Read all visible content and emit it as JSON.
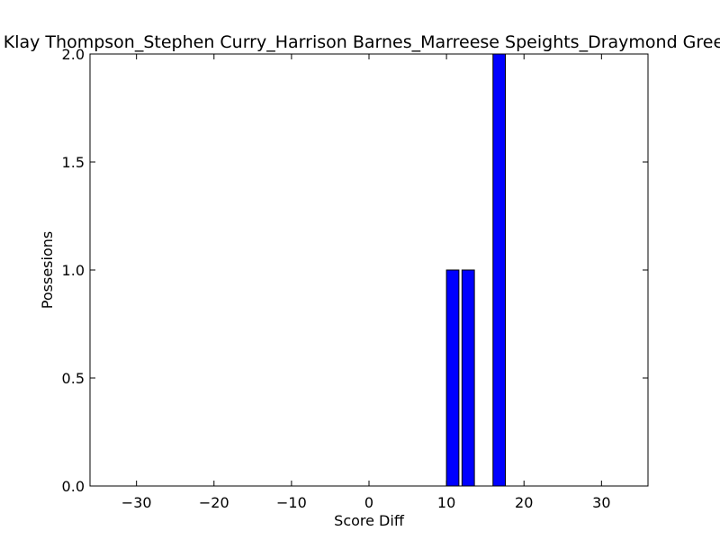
{
  "chart_data": {
    "type": "bar",
    "title": "Klay Thompson_Stephen Curry_Harrison Barnes_Marreese Speights_Draymond Green",
    "xlabel": "Score Diff",
    "ylabel": "Possesions",
    "xlim": [
      -36,
      36
    ],
    "ylim": [
      0,
      2
    ],
    "xticks": [
      -30,
      -20,
      -10,
      0,
      10,
      20,
      30
    ],
    "yticks": [
      0.0,
      0.5,
      1.0,
      1.5,
      2.0
    ],
    "bar_width": 1.6,
    "grid": false,
    "legend": "none",
    "bar_color": "#0000ff",
    "edge_color": "#000000",
    "bars": [
      {
        "x": -36,
        "value": 0
      },
      {
        "x": -34,
        "value": 0
      },
      {
        "x": -32,
        "value": 0
      },
      {
        "x": -30,
        "value": 0
      },
      {
        "x": -28,
        "value": 0
      },
      {
        "x": -26,
        "value": 0
      },
      {
        "x": -24,
        "value": 0
      },
      {
        "x": -22,
        "value": 0
      },
      {
        "x": -20,
        "value": 0
      },
      {
        "x": -18,
        "value": 0
      },
      {
        "x": -16,
        "value": 0
      },
      {
        "x": -14,
        "value": 0
      },
      {
        "x": -12,
        "value": 0
      },
      {
        "x": -10,
        "value": 0
      },
      {
        "x": -8,
        "value": 0
      },
      {
        "x": -6,
        "value": 0
      },
      {
        "x": -4,
        "value": 0
      },
      {
        "x": -2,
        "value": 0
      },
      {
        "x": 0,
        "value": 0
      },
      {
        "x": 2,
        "value": 0
      },
      {
        "x": 4,
        "value": 0
      },
      {
        "x": 6,
        "value": 0
      },
      {
        "x": 8,
        "value": 0
      },
      {
        "x": 10,
        "value": 1
      },
      {
        "x": 12,
        "value": 1
      },
      {
        "x": 14,
        "value": 0
      },
      {
        "x": 16,
        "value": 2
      },
      {
        "x": 18,
        "value": 0
      },
      {
        "x": 20,
        "value": 0
      },
      {
        "x": 22,
        "value": 0
      },
      {
        "x": 24,
        "value": 0
      },
      {
        "x": 26,
        "value": 0
      },
      {
        "x": 28,
        "value": 0
      },
      {
        "x": 30,
        "value": 0
      },
      {
        "x": 32,
        "value": 0
      },
      {
        "x": 34,
        "value": 0
      }
    ]
  }
}
